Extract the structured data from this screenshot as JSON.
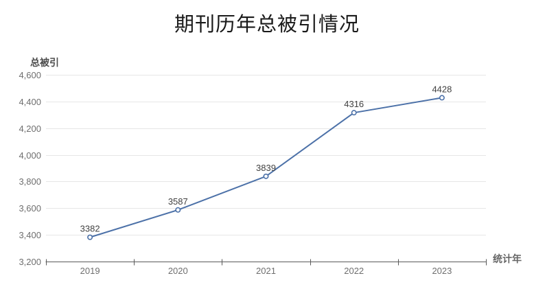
{
  "chart_data": {
    "type": "line",
    "title": "期刊历年总被引情况",
    "ylabel": "总被引",
    "xlabel": "统计年",
    "categories": [
      "2019",
      "2020",
      "2021",
      "2022",
      "2023"
    ],
    "series": [
      {
        "name": "总被引",
        "values": [
          3382,
          3587,
          3839,
          4316,
          4428
        ]
      }
    ],
    "data_labels": [
      "3382",
      "3587",
      "3839",
      "4316",
      "4428"
    ],
    "ylim": [
      3200,
      4600
    ],
    "ytick_step": 200,
    "ytick_labels": [
      "3,200",
      "3,400",
      "3,600",
      "3,800",
      "4,000",
      "4,200",
      "4,400",
      "4,600"
    ],
    "grid": true,
    "legend_position": "none",
    "marker": "open-circle",
    "colors": {
      "line": "#4c71a8",
      "marker_fill": "#ffffff",
      "grid": "#e6e6e6",
      "axis": "#595959",
      "tick_label": "#6e6e6e",
      "data_label": "#404040",
      "title": "#1a1a1a",
      "axis_title": "#4d4d4d"
    }
  }
}
